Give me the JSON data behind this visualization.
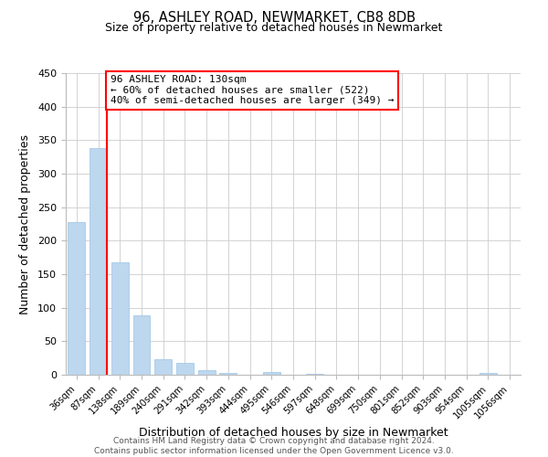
{
  "title": "96, ASHLEY ROAD, NEWMARKET, CB8 8DB",
  "subtitle": "Size of property relative to detached houses in Newmarket",
  "xlabel": "Distribution of detached houses by size in Newmarket",
  "ylabel": "Number of detached properties",
  "bar_labels": [
    "36sqm",
    "87sqm",
    "138sqm",
    "189sqm",
    "240sqm",
    "291sqm",
    "342sqm",
    "393sqm",
    "444sqm",
    "495sqm",
    "546sqm",
    "597sqm",
    "648sqm",
    "699sqm",
    "750sqm",
    "801sqm",
    "852sqm",
    "903sqm",
    "954sqm",
    "1005sqm",
    "1056sqm"
  ],
  "bar_values": [
    228,
    338,
    168,
    89,
    23,
    18,
    7,
    3,
    0,
    4,
    0,
    1,
    0,
    0,
    0,
    0,
    0,
    0,
    0,
    3,
    0
  ],
  "bar_color": "#bdd7ee",
  "bar_edge_color": "#9dc3e6",
  "vline_color": "red",
  "annotation_title": "96 ASHLEY ROAD: 130sqm",
  "annotation_line1": "← 60% of detached houses are smaller (522)",
  "annotation_line2": "40% of semi-detached houses are larger (349) →",
  "annotation_box_color": "white",
  "annotation_box_edge_color": "red",
  "ylim": [
    0,
    450
  ],
  "yticks": [
    0,
    50,
    100,
    150,
    200,
    250,
    300,
    350,
    400,
    450
  ],
  "footer_line1": "Contains HM Land Registry data © Crown copyright and database right 2024.",
  "footer_line2": "Contains public sector information licensed under the Open Government Licence v3.0.",
  "background_color": "#ffffff",
  "grid_color": "#cccccc"
}
